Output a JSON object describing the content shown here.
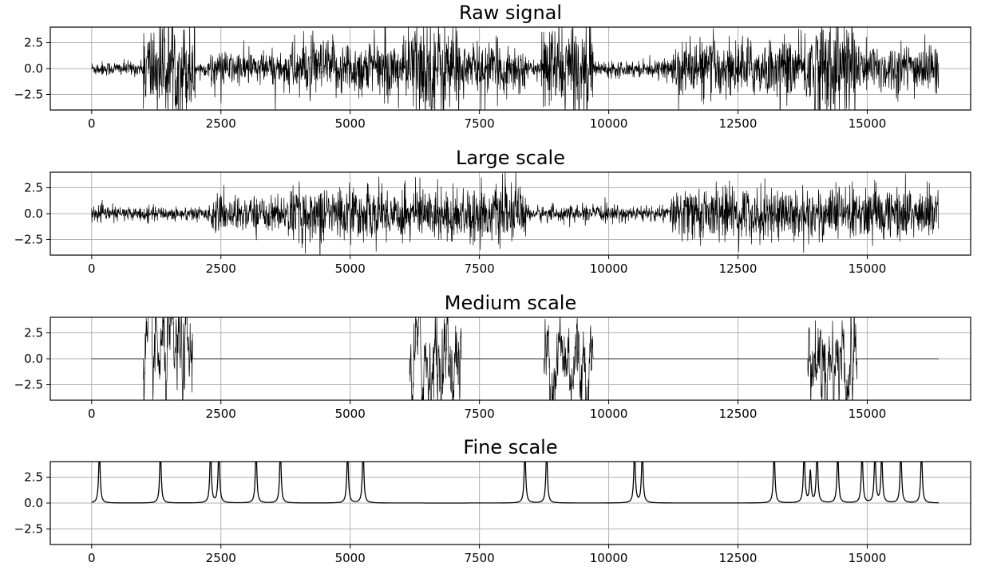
{
  "chart_data": [
    {
      "type": "line",
      "title": "Raw signal",
      "xlim": [
        -800,
        17000
      ],
      "ylim": [
        -4,
        4
      ],
      "x_ticks": [
        0,
        2500,
        5000,
        7500,
        10000,
        12500,
        15000
      ],
      "y_ticks": [
        2.5,
        0.0,
        -2.5
      ],
      "grid": true,
      "x_range": [
        0,
        16383
      ],
      "character": "noisy",
      "segments": [
        {
          "start": 0,
          "end": 1000,
          "amp": 0.45
        },
        {
          "start": 1000,
          "end": 2000,
          "amp": 3.0
        },
        {
          "start": 2000,
          "end": 2300,
          "amp": 0.45
        },
        {
          "start": 2300,
          "end": 3800,
          "amp": 1.1
        },
        {
          "start": 3800,
          "end": 6100,
          "amp": 1.8
        },
        {
          "start": 6100,
          "end": 7100,
          "amp": 3.2
        },
        {
          "start": 7100,
          "end": 8400,
          "amp": 1.6
        },
        {
          "start": 8400,
          "end": 8700,
          "amp": 0.45
        },
        {
          "start": 8700,
          "end": 9700,
          "amp": 2.8
        },
        {
          "start": 9700,
          "end": 11200,
          "amp": 0.5
        },
        {
          "start": 11200,
          "end": 13800,
          "amp": 1.8
        },
        {
          "start": 13800,
          "end": 14800,
          "amp": 3.2
        },
        {
          "start": 14800,
          "end": 16383,
          "amp": 1.6
        }
      ]
    },
    {
      "type": "line",
      "title": "Large scale",
      "xlim": [
        -800,
        17000
      ],
      "ylim": [
        -4,
        4
      ],
      "x_ticks": [
        0,
        2500,
        5000,
        7500,
        10000,
        12500,
        15000
      ],
      "y_ticks": [
        2.5,
        0.0,
        -2.5
      ],
      "grid": true,
      "x_range": [
        0,
        16383
      ],
      "character": "noisy",
      "segments": [
        {
          "start": 0,
          "end": 2300,
          "amp": 0.45
        },
        {
          "start": 2300,
          "end": 3800,
          "amp": 1.1
        },
        {
          "start": 3800,
          "end": 8400,
          "amp": 1.7
        },
        {
          "start": 8400,
          "end": 11200,
          "amp": 0.5
        },
        {
          "start": 11200,
          "end": 16383,
          "amp": 1.7
        }
      ]
    },
    {
      "type": "line",
      "title": "Medium scale",
      "xlim": [
        -800,
        17000
      ],
      "ylim": [
        -4,
        4
      ],
      "x_ticks": [
        0,
        2500,
        5000,
        7500,
        10000,
        12500,
        15000
      ],
      "y_ticks": [
        2.5,
        0.0,
        -2.5
      ],
      "grid": true,
      "x_range": [
        0,
        16383
      ],
      "character": "bursts",
      "bursts": [
        {
          "start": 1000,
          "end": 1950,
          "amp": 3.2
        },
        {
          "start": 6150,
          "end": 7150,
          "amp": 3.2
        },
        {
          "start": 8750,
          "end": 9700,
          "amp": 3.2
        },
        {
          "start": 13850,
          "end": 14800,
          "amp": 3.2
        }
      ]
    },
    {
      "type": "line",
      "title": "Fine scale",
      "xlim": [
        -800,
        17000
      ],
      "ylim": [
        -4,
        4
      ],
      "x_ticks": [
        0,
        2500,
        5000,
        7500,
        10000,
        12500,
        15000
      ],
      "y_ticks": [
        2.5,
        0.0,
        -2.5
      ],
      "grid": true,
      "x_range": [
        0,
        16383
      ],
      "character": "spikes",
      "spikes": [
        {
          "x": 150,
          "h": 4.0
        },
        {
          "x": 1330,
          "h": 4.0
        },
        {
          "x": 2300,
          "h": 4.0
        },
        {
          "x": 2460,
          "h": 4.0
        },
        {
          "x": 3180,
          "h": 4.0
        },
        {
          "x": 3650,
          "h": 4.0
        },
        {
          "x": 4950,
          "h": 4.0
        },
        {
          "x": 5250,
          "h": 4.0
        },
        {
          "x": 8380,
          "h": 4.0
        },
        {
          "x": 8800,
          "h": 4.0
        },
        {
          "x": 10500,
          "h": 4.0
        },
        {
          "x": 10650,
          "h": 4.0
        },
        {
          "x": 13200,
          "h": 4.0
        },
        {
          "x": 13780,
          "h": 4.0
        },
        {
          "x": 13900,
          "h": 2.3
        },
        {
          "x": 14030,
          "h": 4.0
        },
        {
          "x": 14430,
          "h": 4.0
        },
        {
          "x": 14900,
          "h": 4.0
        },
        {
          "x": 15150,
          "h": 4.0
        },
        {
          "x": 15280,
          "h": 3.7
        },
        {
          "x": 15650,
          "h": 4.0
        },
        {
          "x": 16050,
          "h": 4.0
        }
      ]
    }
  ]
}
